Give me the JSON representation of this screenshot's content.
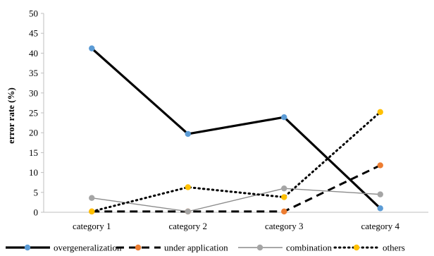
{
  "chart_data": {
    "type": "line",
    "title": "",
    "xlabel": "",
    "ylabel": "error rate (%)",
    "ylim": [
      0,
      50
    ],
    "yticks": [
      0,
      5,
      10,
      15,
      20,
      25,
      30,
      35,
      40,
      45,
      50
    ],
    "grid": false,
    "legend_position": "bottom",
    "categories": [
      "category 1",
      "category 2",
      "category 3",
      "category 4"
    ],
    "series": [
      {
        "name": "overgeneralization",
        "values": [
          41.2,
          19.7,
          23.9,
          1.0
        ],
        "line_color": "#000000",
        "marker_color": "#5b9bd5",
        "style": "solid-thick"
      },
      {
        "name": "under application",
        "values": [
          0.2,
          0.2,
          0.2,
          11.8
        ],
        "line_color": "#000000",
        "marker_color": "#ed7d31",
        "style": "dashed"
      },
      {
        "name": "combination",
        "values": [
          3.6,
          0.2,
          6.0,
          4.5
        ],
        "line_color": "#8c8c8c",
        "marker_color": "#a5a5a5",
        "style": "solid-thin"
      },
      {
        "name": "others",
        "values": [
          0.2,
          6.3,
          3.8,
          25.2
        ],
        "line_color": "#000000",
        "marker_color": "#ffc000",
        "style": "dotted"
      }
    ]
  }
}
